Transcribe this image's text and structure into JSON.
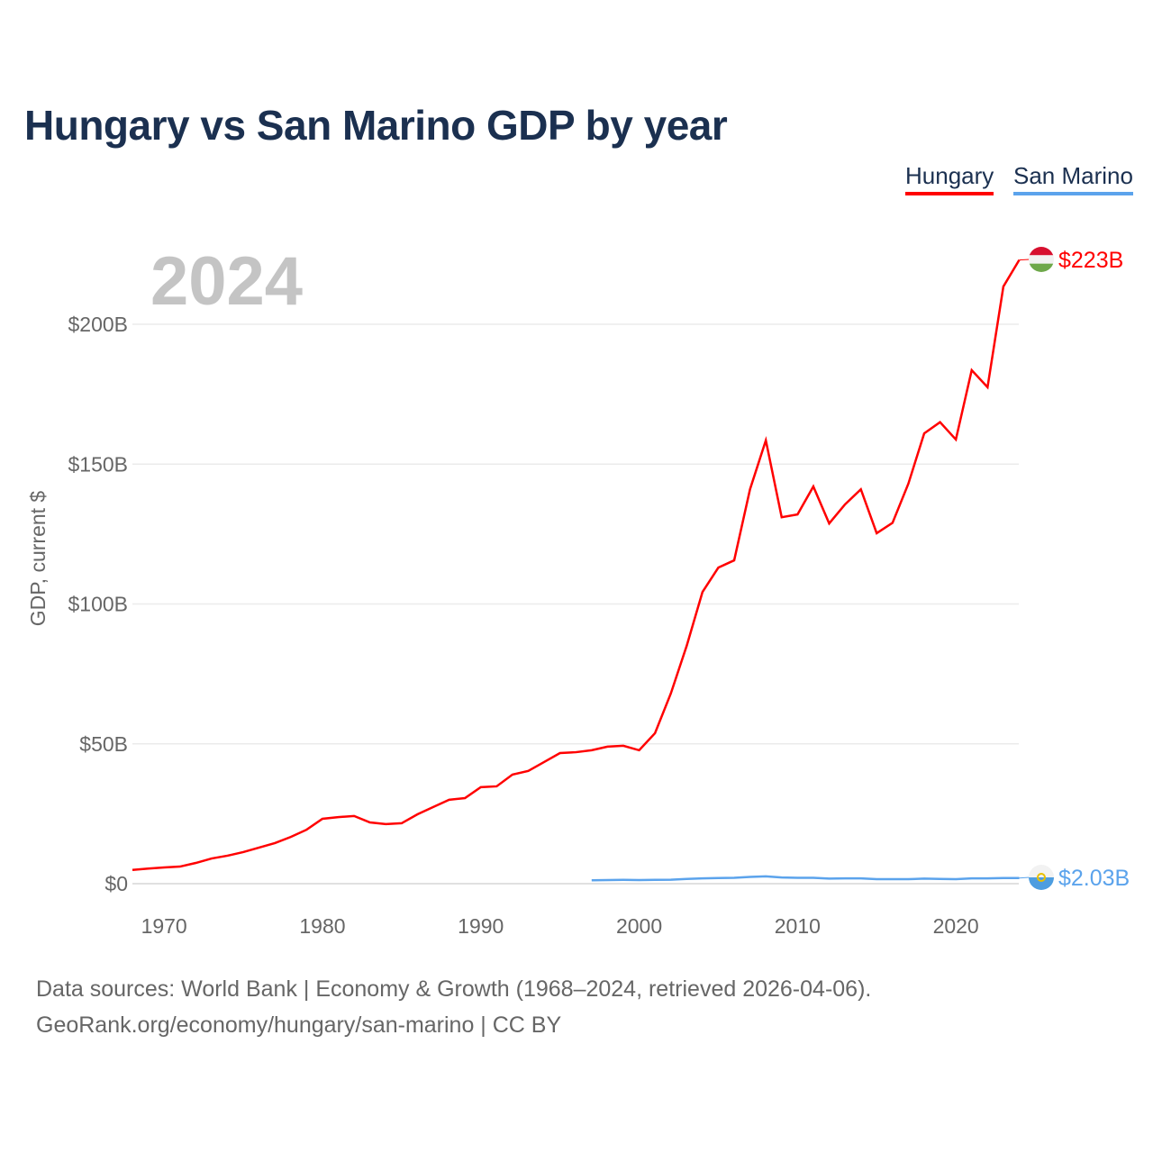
{
  "chart_data": {
    "type": "line",
    "title": "Hungary vs San Marino GDP by year",
    "ylabel": "GDP, current $",
    "xlabel": "",
    "year_watermark": "2024",
    "xlim": [
      1968,
      2024
    ],
    "ylim": [
      0,
      200
    ],
    "x_ticks": [
      1970,
      1980,
      1990,
      2000,
      2010,
      2020
    ],
    "y_ticks": [
      {
        "value": 0,
        "label": "$0"
      },
      {
        "value": 50,
        "label": "$50B"
      },
      {
        "value": 100,
        "label": "$100B"
      },
      {
        "value": 150,
        "label": "$150B"
      },
      {
        "value": 200,
        "label": "$200B"
      }
    ],
    "grid": true,
    "legend_position": "top-right",
    "series": [
      {
        "name": "Hungary",
        "color": "#ff0000",
        "end_label": "$223B",
        "flag": "hungary-flag",
        "x": [
          1968,
          1969,
          1970,
          1971,
          1972,
          1973,
          1974,
          1975,
          1976,
          1977,
          1978,
          1979,
          1980,
          1981,
          1982,
          1983,
          1984,
          1985,
          1986,
          1987,
          1988,
          1989,
          1990,
          1991,
          1992,
          1993,
          1994,
          1995,
          1996,
          1997,
          1998,
          1999,
          2000,
          2001,
          2002,
          2003,
          2004,
          2005,
          2006,
          2007,
          2008,
          2009,
          2010,
          2011,
          2012,
          2013,
          2014,
          2015,
          2016,
          2017,
          2018,
          2019,
          2020,
          2021,
          2022,
          2023,
          2024
        ],
        "values": [
          4.9,
          5.4,
          5.8,
          6.1,
          7.4,
          9.0,
          10.0,
          11.3,
          12.9,
          14.5,
          16.7,
          19.3,
          23.2,
          23.8,
          24.2,
          21.9,
          21.3,
          21.6,
          24.8,
          27.4,
          30.0,
          30.6,
          34.5,
          34.8,
          39.0,
          40.3,
          43.5,
          46.7,
          47.0,
          47.7,
          49.0,
          49.3,
          47.7,
          53.8,
          68.0,
          85.0,
          104.3,
          113.0,
          115.6,
          141.0,
          158.5,
          131.0,
          132.0,
          142.0,
          128.8,
          135.6,
          141.0,
          125.3,
          129.0,
          143.0,
          161.0,
          165.0,
          158.8,
          183.6,
          177.5,
          213.5,
          223.0
        ]
      },
      {
        "name": "San Marino",
        "color": "#5ba3ec",
        "end_label": "$2.03B",
        "flag": "san-marino-flag",
        "x": [
          1997,
          1998,
          1999,
          2000,
          2001,
          2002,
          2003,
          2004,
          2005,
          2006,
          2007,
          2008,
          2009,
          2010,
          2011,
          2012,
          2013,
          2014,
          2015,
          2016,
          2017,
          2018,
          2019,
          2020,
          2021,
          2022,
          2023,
          2024
        ],
        "values": [
          1.2,
          1.3,
          1.35,
          1.3,
          1.35,
          1.4,
          1.7,
          1.9,
          2.0,
          2.1,
          2.4,
          2.6,
          2.2,
          2.1,
          2.1,
          1.8,
          1.9,
          1.9,
          1.6,
          1.6,
          1.6,
          1.8,
          1.7,
          1.6,
          1.9,
          1.9,
          2.0,
          2.03
        ]
      }
    ]
  },
  "sources": {
    "line1": "Data sources: World Bank | Economy & Growth (1968–2024, retrieved 2026-04-06).",
    "line2": "GeoRank.org/economy/hungary/san-marino | CC BY"
  }
}
